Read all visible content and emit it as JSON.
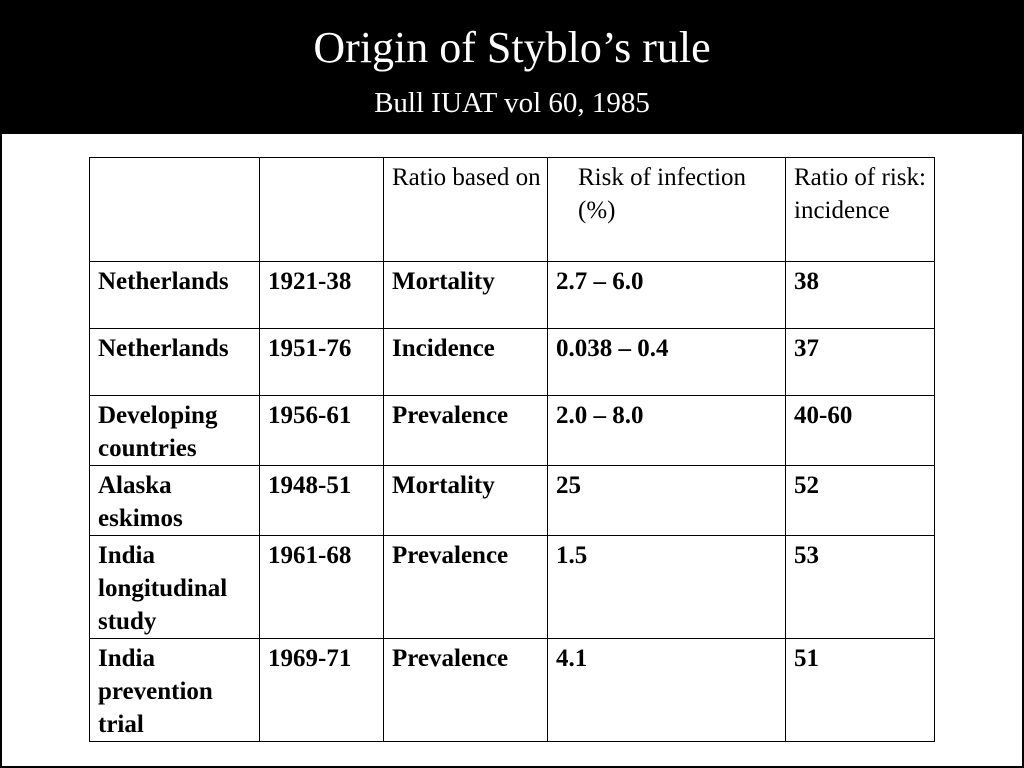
{
  "header": {
    "title": "Origin of Styblo’s rule",
    "subtitle": "Bull IUAT vol 60, 1985"
  },
  "table": {
    "headers": [
      "",
      "",
      "Ratio based on",
      "Risk of infection (%)",
      "Ratio of risk: incidence"
    ],
    "rows": [
      [
        "Netherlands",
        "1921-38",
        "Mortality",
        "2.7 – 6.0",
        "38"
      ],
      [
        "Netherlands",
        "1951-76",
        "Incidence",
        "0.038 – 0.4",
        "37"
      ],
      [
        "Developing countries",
        "1956-61",
        "Prevalence",
        "2.0 – 8.0",
        "40-60"
      ],
      [
        "Alaska eskimos",
        "1948-51",
        "Mortality",
        "25",
        "52"
      ],
      [
        "India longitudinal study",
        "1961-68",
        "Prevalence",
        "1.5",
        "53"
      ],
      [
        "India prevention trial",
        "1969-71",
        "Prevalence",
        "4.1",
        "51"
      ]
    ]
  }
}
